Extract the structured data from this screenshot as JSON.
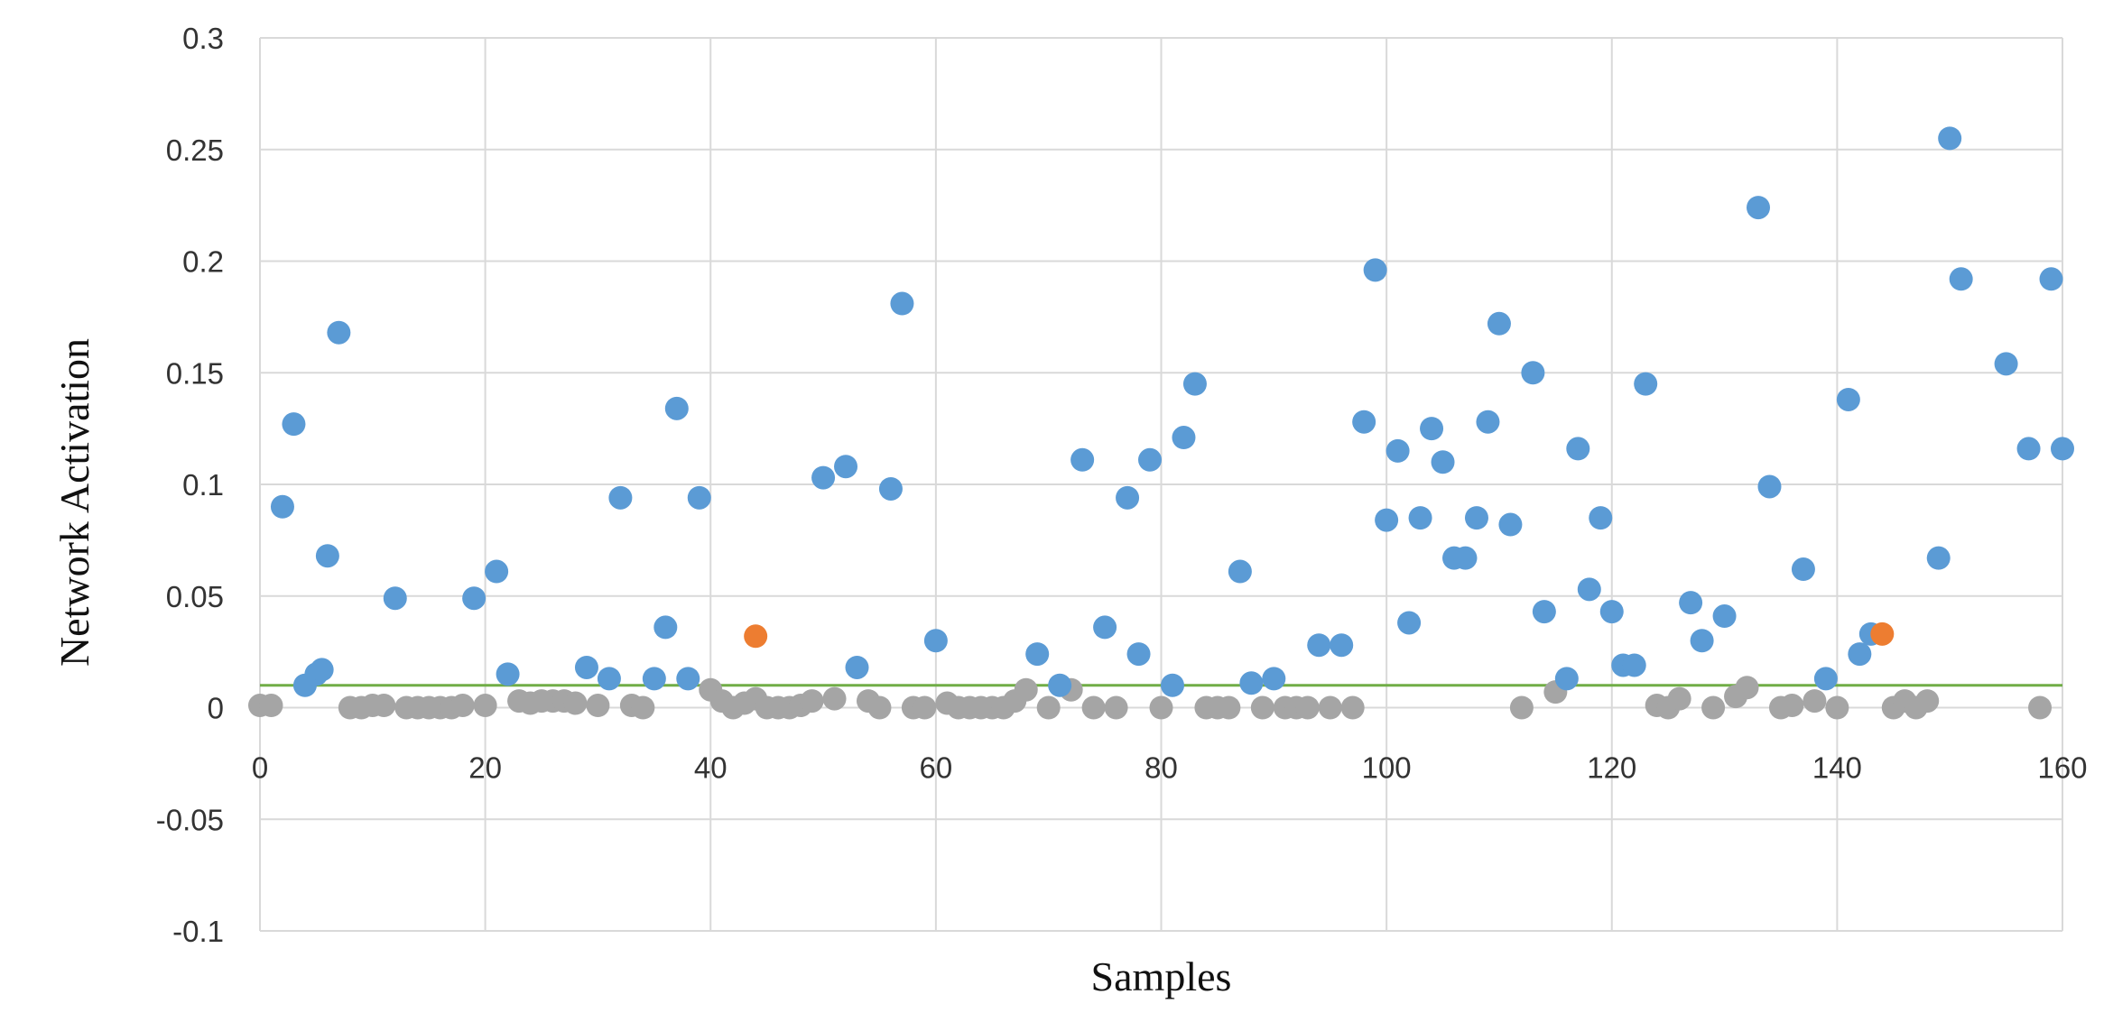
{
  "chart_data": {
    "type": "scatter",
    "title": "",
    "xlabel": "Samples",
    "ylabel": "Network Activation",
    "xlim": [
      0,
      160
    ],
    "ylim": [
      -0.1,
      0.3
    ],
    "x_ticks": [
      0,
      20,
      40,
      60,
      80,
      100,
      120,
      140,
      160
    ],
    "x_tick_labels": [
      "0",
      "20",
      "40",
      "60",
      "80",
      "100",
      "120",
      "140",
      "160"
    ],
    "y_ticks": [
      -0.1,
      -0.05,
      0,
      0.05,
      0.1,
      0.15,
      0.2,
      0.25,
      0.3
    ],
    "y_tick_labels": [
      "-0.1",
      "-0.05",
      "0",
      "0.05",
      "0.1",
      "0.15",
      "0.2",
      "0.25",
      "0.3"
    ],
    "grid": true,
    "legend": "none",
    "threshold": 0.01,
    "threshold_color": "#70ad47",
    "series": [
      {
        "color": "#a5a5a5",
        "points": [
          [
            0,
            0.001
          ],
          [
            1,
            0.001
          ],
          [
            8,
            0.0
          ],
          [
            9,
            0.0
          ],
          [
            10,
            0.001
          ],
          [
            11,
            0.001
          ],
          [
            13,
            0.0
          ],
          [
            14,
            0.0
          ],
          [
            15,
            0.0
          ],
          [
            16,
            0.0
          ],
          [
            17,
            0.0
          ],
          [
            18,
            0.001
          ],
          [
            20,
            0.001
          ],
          [
            23,
            0.003
          ],
          [
            24,
            0.002
          ],
          [
            25,
            0.003
          ],
          [
            26,
            0.003
          ],
          [
            27,
            0.003
          ],
          [
            28,
            0.002
          ],
          [
            30,
            0.001
          ],
          [
            33,
            0.001
          ],
          [
            34,
            0.0
          ],
          [
            40,
            0.008
          ],
          [
            41,
            0.003
          ],
          [
            42,
            0.0
          ],
          [
            43,
            0.002
          ],
          [
            44,
            0.004
          ],
          [
            45,
            0.0
          ],
          [
            46,
            0.0
          ],
          [
            47,
            0.0
          ],
          [
            48,
            0.001
          ],
          [
            49,
            0.003
          ],
          [
            51,
            0.004
          ],
          [
            54,
            0.003
          ],
          [
            55,
            0.0
          ],
          [
            58,
            0.0
          ],
          [
            59,
            0.0
          ],
          [
            61,
            0.002
          ],
          [
            62,
            0.0
          ],
          [
            63,
            0.0
          ],
          [
            64,
            0.0
          ],
          [
            65,
            0.0
          ],
          [
            66,
            0.0
          ],
          [
            67,
            0.003
          ],
          [
            68,
            0.008
          ],
          [
            70,
            0.0
          ],
          [
            72,
            0.008
          ],
          [
            74,
            0.0
          ],
          [
            76,
            0.0
          ],
          [
            80,
            0.0
          ],
          [
            84,
            0.0
          ],
          [
            85,
            0.0
          ],
          [
            86,
            0.0
          ],
          [
            89,
            0.0
          ],
          [
            91,
            0.0
          ],
          [
            92,
            0.0
          ],
          [
            93,
            0.0
          ],
          [
            95,
            0.0
          ],
          [
            97,
            0.0
          ],
          [
            112,
            0.0
          ],
          [
            115,
            0.007
          ],
          [
            124,
            0.001
          ],
          [
            125,
            0.0
          ],
          [
            126,
            0.004
          ],
          [
            129,
            0.0
          ],
          [
            131,
            0.005
          ],
          [
            132,
            0.009
          ],
          [
            135,
            0.0
          ],
          [
            136,
            0.001
          ],
          [
            138,
            0.003
          ],
          [
            140,
            0.0
          ],
          [
            145,
            0.0
          ],
          [
            146,
            0.003
          ],
          [
            147,
            0.0
          ],
          [
            148,
            0.003
          ],
          [
            158,
            0.0
          ]
        ]
      },
      {
        "color": "#5b9bd5",
        "points": [
          [
            2,
            0.09
          ],
          [
            3,
            0.127
          ],
          [
            4,
            0.01
          ],
          [
            5,
            0.015
          ],
          [
            5.5,
            0.017
          ],
          [
            6,
            0.068
          ],
          [
            7,
            0.168
          ],
          [
            12,
            0.049
          ],
          [
            19,
            0.049
          ],
          [
            21,
            0.061
          ],
          [
            22,
            0.015
          ],
          [
            29,
            0.018
          ],
          [
            31,
            0.013
          ],
          [
            32,
            0.094
          ],
          [
            35,
            0.013
          ],
          [
            36,
            0.036
          ],
          [
            37,
            0.134
          ],
          [
            38,
            0.013
          ],
          [
            39,
            0.094
          ],
          [
            50,
            0.103
          ],
          [
            52,
            0.108
          ],
          [
            53,
            0.018
          ],
          [
            56,
            0.098
          ],
          [
            57,
            0.181
          ],
          [
            60,
            0.03
          ],
          [
            69,
            0.024
          ],
          [
            71,
            0.01
          ],
          [
            73,
            0.111
          ],
          [
            75,
            0.036
          ],
          [
            77,
            0.094
          ],
          [
            78,
            0.024
          ],
          [
            79,
            0.111
          ],
          [
            81,
            0.01
          ],
          [
            82,
            0.121
          ],
          [
            83,
            0.145
          ],
          [
            87,
            0.061
          ],
          [
            88,
            0.011
          ],
          [
            90,
            0.013
          ],
          [
            94,
            0.028
          ],
          [
            96,
            0.028
          ],
          [
            98,
            0.128
          ],
          [
            99,
            0.196
          ],
          [
            100,
            0.084
          ],
          [
            101,
            0.115
          ],
          [
            102,
            0.038
          ],
          [
            103,
            0.085
          ],
          [
            104,
            0.125
          ],
          [
            105,
            0.11
          ],
          [
            106,
            0.067
          ],
          [
            107,
            0.067
          ],
          [
            108,
            0.085
          ],
          [
            109,
            0.128
          ],
          [
            110,
            0.172
          ],
          [
            111,
            0.082
          ],
          [
            113,
            0.15
          ],
          [
            114,
            0.043
          ],
          [
            116,
            0.013
          ],
          [
            117,
            0.116
          ],
          [
            118,
            0.053
          ],
          [
            119,
            0.085
          ],
          [
            120,
            0.043
          ],
          [
            121,
            0.019
          ],
          [
            122,
            0.019
          ],
          [
            123,
            0.145
          ],
          [
            127,
            0.047
          ],
          [
            128,
            0.03
          ],
          [
            130,
            0.041
          ],
          [
            133,
            0.224
          ],
          [
            134,
            0.099
          ],
          [
            137,
            0.062
          ],
          [
            139,
            0.013
          ],
          [
            141,
            0.138
          ],
          [
            142,
            0.024
          ],
          [
            143,
            0.033
          ],
          [
            149,
            0.067
          ],
          [
            150,
            0.255
          ],
          [
            151,
            0.192
          ],
          [
            155,
            0.154
          ],
          [
            157,
            0.116
          ],
          [
            159,
            0.192
          ],
          [
            160,
            0.116
          ]
        ]
      },
      {
        "color": "#ed7d31",
        "points": [
          [
            44,
            0.032
          ],
          [
            144,
            0.033
          ]
        ]
      }
    ]
  }
}
